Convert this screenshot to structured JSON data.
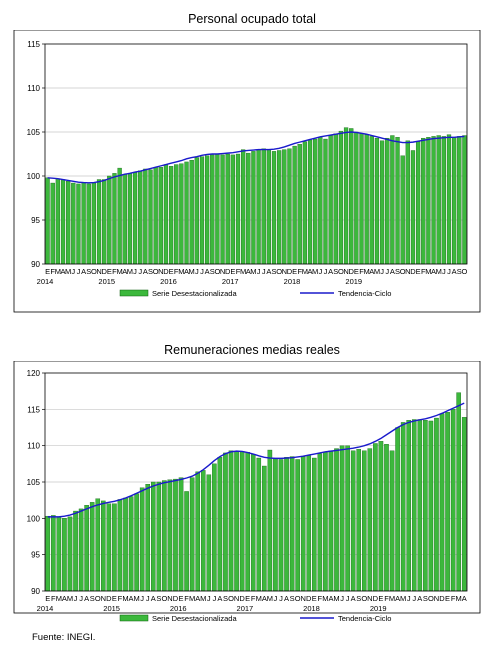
{
  "source": "Fuente: INEGI.",
  "chart_data": [
    {
      "type": "bar",
      "title": "Personal ocupado total",
      "ylim": [
        90,
        115
      ],
      "yticks": [
        90,
        95,
        100,
        105,
        110,
        115
      ],
      "month_letters": [
        "E",
        "F",
        "M",
        "A",
        "M",
        "J",
        "J",
        "A",
        "S",
        "O",
        "N",
        "D"
      ],
      "year_labels": [
        "2014",
        "2015",
        "2016",
        "2017",
        "2018",
        "2019"
      ],
      "legend": {
        "bars": "Serie Desestacionalizada",
        "line": "Tendencia-Ciclo"
      },
      "colors": {
        "bar": "#3cb83c",
        "bar_edge": "#0f5f0f",
        "line": "#1a1acc"
      },
      "series": [
        {
          "name": "Serie Desestacionalizada",
          "kind": "bar",
          "values": [
            99.8,
            99.2,
            99.7,
            99.6,
            99.4,
            99.2,
            99.1,
            99.3,
            99.1,
            99.2,
            99.6,
            99.6,
            100.0,
            100.3,
            100.9,
            100.2,
            100.3,
            100.4,
            100.6,
            100.8,
            100.7,
            101.0,
            101.0,
            101.3,
            101.1,
            101.3,
            101.4,
            101.6,
            101.8,
            102.1,
            102.2,
            102.3,
            102.4,
            102.5,
            102.4,
            102.5,
            102.4,
            102.5,
            103.0,
            102.6,
            102.8,
            103.0,
            103.1,
            103.0,
            102.8,
            102.9,
            103.0,
            103.1,
            103.4,
            103.6,
            103.9,
            104.1,
            104.2,
            104.4,
            104.2,
            104.6,
            104.8,
            105.1,
            105.5,
            105.4,
            105.0,
            104.8,
            104.7,
            104.5,
            104.3,
            104.0,
            104.3,
            104.6,
            104.4,
            102.3,
            104.0,
            102.9,
            103.9,
            104.3,
            104.4,
            104.5,
            104.6,
            104.5,
            104.7,
            104.4,
            104.5,
            104.6
          ]
        },
        {
          "name": "Tendencia-Ciclo",
          "kind": "line",
          "values": [
            99.8,
            99.75,
            99.7,
            99.6,
            99.5,
            99.4,
            99.3,
            99.25,
            99.22,
            99.25,
            99.35,
            99.5,
            99.7,
            99.9,
            100.05,
            100.2,
            100.3,
            100.45,
            100.55,
            100.7,
            100.85,
            101.0,
            101.15,
            101.3,
            101.45,
            101.6,
            101.75,
            101.95,
            102.1,
            102.2,
            102.35,
            102.45,
            102.5,
            102.5,
            102.55,
            102.6,
            102.65,
            102.75,
            102.85,
            102.9,
            102.95,
            103.0,
            103.0,
            103.0,
            103.05,
            103.15,
            103.3,
            103.5,
            103.7,
            103.85,
            104.0,
            104.15,
            104.3,
            104.45,
            104.55,
            104.65,
            104.75,
            104.85,
            104.95,
            105.0,
            104.95,
            104.85,
            104.75,
            104.6,
            104.45,
            104.3,
            104.15,
            104.0,
            103.9,
            103.8,
            103.8,
            103.85,
            103.95,
            104.05,
            104.15,
            104.25,
            104.3,
            104.35,
            104.4,
            104.4,
            104.45,
            104.5
          ]
        }
      ]
    },
    {
      "type": "bar",
      "title": "Remuneraciones medias reales",
      "ylim": [
        90,
        120
      ],
      "yticks": [
        90,
        95,
        100,
        105,
        110,
        115,
        120
      ],
      "month_letters": [
        "E",
        "F",
        "M",
        "A",
        "M",
        "J",
        "J",
        "A",
        "S",
        "O",
        "N",
        "D"
      ],
      "year_labels": [
        "2014",
        "2015",
        "2016",
        "2017",
        "2018",
        "2019"
      ],
      "legend": {
        "bars": "Serie Desestacionalizada",
        "line": "Tendencia-Ciclo"
      },
      "colors": {
        "bar": "#3cb83c",
        "bar_edge": "#0f5f0f",
        "line": "#1a1acc"
      },
      "series": [
        {
          "name": "Serie Desestacionalizada",
          "kind": "bar",
          "values": [
            100.3,
            100.4,
            100.2,
            100.0,
            100.2,
            101.0,
            101.3,
            101.8,
            102.2,
            102.7,
            102.4,
            102.0,
            102.0,
            102.6,
            102.8,
            103.0,
            103.4,
            104.2,
            104.7,
            105.0,
            105.0,
            105.2,
            105.3,
            105.4,
            105.6,
            103.7,
            105.6,
            106.4,
            106.6,
            106.0,
            107.5,
            108.4,
            109.0,
            109.3,
            109.2,
            109.2,
            109.1,
            108.8,
            108.3,
            107.2,
            109.4,
            108.2,
            108.1,
            108.4,
            108.5,
            108.1,
            108.5,
            108.6,
            108.3,
            108.9,
            109.1,
            109.3,
            109.6,
            110.0,
            110.0,
            109.3,
            109.5,
            109.3,
            109.6,
            110.3,
            110.6,
            110.2,
            109.3,
            112.5,
            113.2,
            113.5,
            113.6,
            113.6,
            113.5,
            113.4,
            113.8,
            114.4,
            114.6,
            115.0,
            117.3,
            113.9
          ]
        },
        {
          "name": "Tendencia-Ciclo",
          "kind": "line",
          "values": [
            100.2,
            100.2,
            100.2,
            100.3,
            100.45,
            100.7,
            101.0,
            101.3,
            101.6,
            101.85,
            102.05,
            102.2,
            102.35,
            102.55,
            102.8,
            103.1,
            103.45,
            103.8,
            104.15,
            104.45,
            104.7,
            104.9,
            105.05,
            105.2,
            105.35,
            105.55,
            105.8,
            106.2,
            106.7,
            107.3,
            107.95,
            108.5,
            108.9,
            109.15,
            109.25,
            109.2,
            109.05,
            108.85,
            108.6,
            108.4,
            108.3,
            108.25,
            108.25,
            108.3,
            108.35,
            108.45,
            108.55,
            108.7,
            108.85,
            109.0,
            109.15,
            109.25,
            109.35,
            109.45,
            109.55,
            109.65,
            109.8,
            110.0,
            110.25,
            110.6,
            111.0,
            111.5,
            112.0,
            112.5,
            112.9,
            113.2,
            113.4,
            113.55,
            113.7,
            113.9,
            114.15,
            114.45,
            114.8,
            115.15,
            115.5,
            115.85
          ]
        }
      ]
    }
  ]
}
